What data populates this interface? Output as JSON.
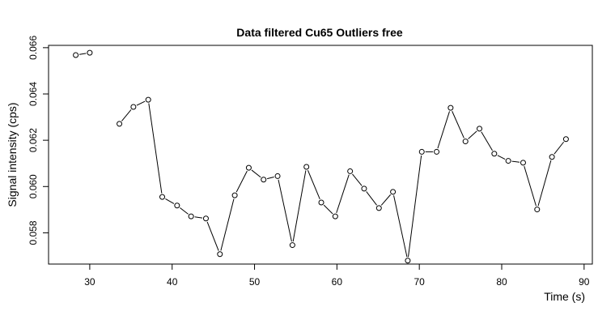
{
  "chart_data": {
    "type": "line",
    "title": "Data filtered Cu65 Outliers free",
    "xlabel": "Time (s)",
    "ylabel": "Signal intensity (cps)",
    "xlim": [
      25,
      91
    ],
    "ylim": [
      0.05665,
      0.0661
    ],
    "xticks": [
      30,
      40,
      50,
      60,
      70,
      80,
      90
    ],
    "yticks": [
      0.058,
      0.06,
      0.062,
      0.064,
      0.066
    ],
    "ytick_labels": [
      "0.058",
      "0.060",
      "0.062",
      "0.064",
      "0.066"
    ],
    "grid": false,
    "segments": [
      [
        [
          28.3,
          0.06568
        ],
        [
          30.0,
          0.06578
        ]
      ],
      [
        [
          33.6,
          0.06271
        ],
        [
          35.3,
          0.06344
        ],
        [
          37.1,
          0.06375
        ],
        [
          38.8,
          0.05955
        ],
        [
          40.6,
          0.05918
        ],
        [
          42.3,
          0.05871
        ],
        [
          44.1,
          0.05862
        ],
        [
          45.8,
          0.05708
        ],
        [
          47.6,
          0.05962
        ],
        [
          49.3,
          0.06081
        ],
        [
          51.1,
          0.0603
        ],
        [
          52.8,
          0.06045
        ],
        [
          54.6,
          0.05747
        ],
        [
          56.3,
          0.06085
        ],
        [
          58.1,
          0.05931
        ],
        [
          59.8,
          0.05871
        ],
        [
          61.6,
          0.06066
        ],
        [
          63.3,
          0.05991
        ],
        [
          65.1,
          0.05907
        ],
        [
          66.8,
          0.05977
        ],
        [
          68.6,
          0.0568
        ],
        [
          70.3,
          0.0615
        ],
        [
          72.1,
          0.0615
        ],
        [
          73.8,
          0.0634
        ],
        [
          75.6,
          0.06195
        ],
        [
          77.3,
          0.0625
        ],
        [
          79.1,
          0.06142
        ],
        [
          80.8,
          0.06111
        ],
        [
          82.6,
          0.06103
        ],
        [
          84.3,
          0.05901
        ],
        [
          86.1,
          0.06128
        ],
        [
          87.8,
          0.06205
        ]
      ]
    ]
  }
}
